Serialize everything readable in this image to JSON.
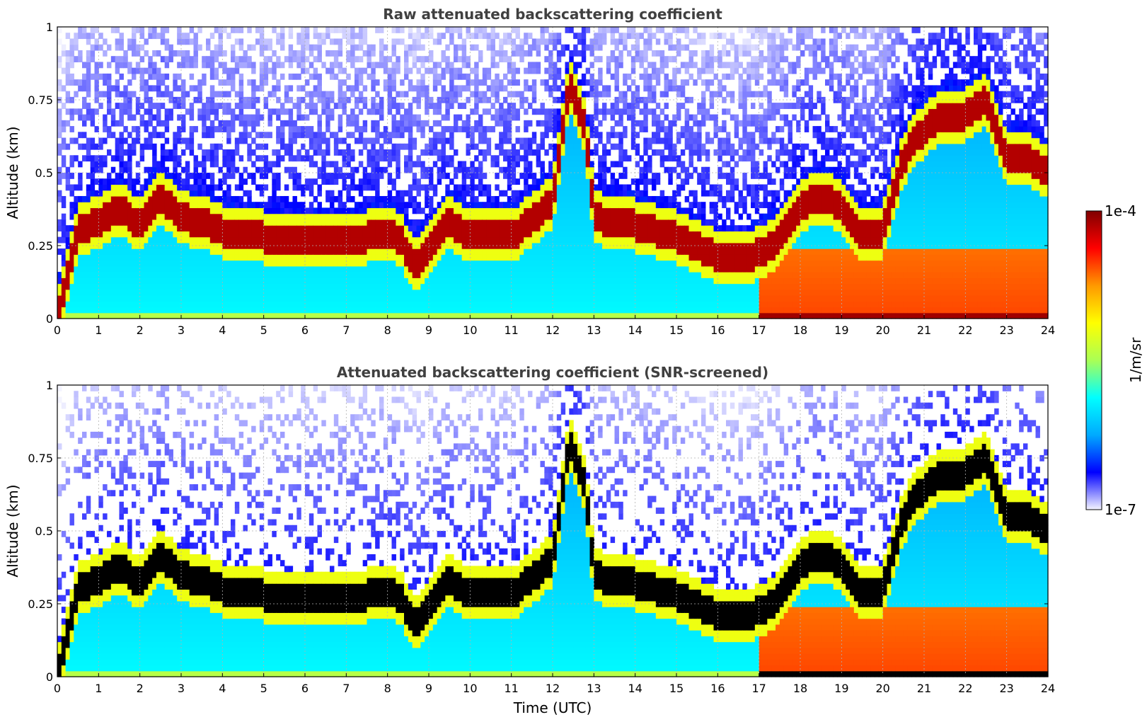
{
  "chart_data": [
    {
      "type": "heatmap",
      "title": "Raw attenuated backscattering coefficient",
      "xlabel": "",
      "ylabel": "Altitude (km)",
      "xlim": [
        0,
        24
      ],
      "ylim": [
        0,
        1
      ],
      "xticks": [
        "0",
        "1",
        "2",
        "3",
        "4",
        "5",
        "6",
        "7",
        "8",
        "9",
        "10",
        "11",
        "12",
        "13",
        "14",
        "15",
        "16",
        "17",
        "18",
        "19",
        "20",
        "21",
        "22",
        "23",
        "24"
      ],
      "yticks": [
        "0",
        "0.25",
        "0.5",
        "0.75",
        "1"
      ],
      "grid": true,
      "screened": false,
      "layer_height_km": [
        [
          0,
          0.0
        ],
        [
          0.5,
          0.3
        ],
        [
          1,
          0.33
        ],
        [
          1.5,
          0.38
        ],
        [
          2,
          0.32
        ],
        [
          2.5,
          0.42
        ],
        [
          3,
          0.35
        ],
        [
          3.5,
          0.33
        ],
        [
          4,
          0.3
        ],
        [
          5,
          0.28
        ],
        [
          6,
          0.27
        ],
        [
          7,
          0.26
        ],
        [
          8,
          0.3
        ],
        [
          8.3,
          0.27
        ],
        [
          8.7,
          0.19
        ],
        [
          9,
          0.24
        ],
        [
          9.5,
          0.33
        ],
        [
          10,
          0.28
        ],
        [
          11,
          0.28
        ],
        [
          12,
          0.4
        ],
        [
          12.4,
          0.8
        ],
        [
          12.8,
          0.65
        ],
        [
          13,
          0.35
        ],
        [
          13.5,
          0.33
        ],
        [
          14,
          0.32
        ],
        [
          15,
          0.28
        ],
        [
          16,
          0.21
        ],
        [
          16.7,
          0.2
        ],
        [
          17.5,
          0.27
        ],
        [
          18,
          0.38
        ],
        [
          18.5,
          0.42
        ],
        [
          19,
          0.38
        ],
        [
          19.5,
          0.28
        ],
        [
          20,
          0.3
        ],
        [
          20.5,
          0.55
        ],
        [
          21,
          0.65
        ],
        [
          21.5,
          0.7
        ],
        [
          22,
          0.7
        ],
        [
          22.5,
          0.75
        ],
        [
          23,
          0.55
        ],
        [
          23.5,
          0.55
        ],
        [
          24,
          0.5
        ]
      ]
    },
    {
      "type": "heatmap",
      "title": "Attenuated backscattering coefficient (SNR-screened)",
      "xlabel": "Time (UTC)",
      "ylabel": "Altitude (km)",
      "xlim": [
        0,
        24
      ],
      "ylim": [
        0,
        1
      ],
      "xticks": [
        "0",
        "1",
        "2",
        "3",
        "4",
        "5",
        "6",
        "7",
        "8",
        "9",
        "10",
        "11",
        "12",
        "13",
        "14",
        "15",
        "16",
        "17",
        "18",
        "19",
        "20",
        "21",
        "22",
        "23",
        "24"
      ],
      "yticks": [
        "0",
        "0.25",
        "0.5",
        "0.75",
        "1"
      ],
      "grid": true,
      "screened": true
    }
  ],
  "colorbar": {
    "label": "1/m/sr",
    "max_label": "1e-4",
    "min_label": "1e-7",
    "colormap": [
      "#f4f4ff",
      "#0000ff",
      "#00aaff",
      "#00ffff",
      "#aaff55",
      "#ffff00",
      "#ff9900",
      "#ff0000",
      "#800000"
    ]
  }
}
